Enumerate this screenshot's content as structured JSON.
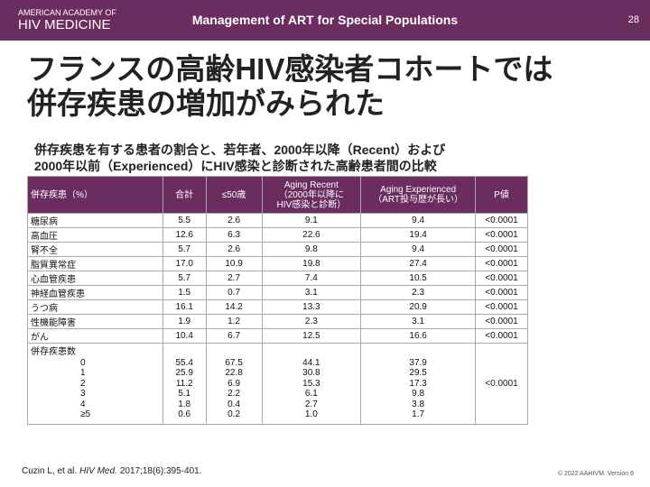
{
  "header": {
    "logo": [
      "AMERICAN ACADEMY OF",
      "HIV MEDICINE"
    ],
    "title": "Management of ART for Special Populations",
    "page": "28"
  },
  "title": [
    "フランスの高齢HIV感染者コホートでは",
    "併存疾患の増加がみられた"
  ],
  "subtitle": [
    "併存疾患を有する患者の割合と、若年者、2000年以降（Recent）および",
    "2000年以前（Experienced）にHIV感染と診断された高齢患者間の比較"
  ],
  "table": {
    "columns": [
      [
        "併存疾患（%）"
      ],
      [
        "合計"
      ],
      [
        "≤50歳"
      ],
      [
        "Aging Recent",
        "（2000年以降に",
        "HIV感染と診断）"
      ],
      [
        "Aging Experienced",
        "（ART投与歴が長い）"
      ],
      [
        "P値"
      ]
    ],
    "rows": [
      [
        "糖尿病",
        "5.5",
        "2.6",
        "9.1",
        "9.4",
        "<0.0001"
      ],
      [
        "高血圧",
        "12.6",
        "6.3",
        "22.6",
        "19.4",
        "<0.0001"
      ],
      [
        "腎不全",
        "5.7",
        "2.6",
        "9.8",
        "9.4",
        "<0.0001"
      ],
      [
        "脂質異常症",
        "17.0",
        "10.9",
        "19.8",
        "27.4",
        "<0.0001"
      ],
      [
        "心血管疾患",
        "5.7",
        "2.7",
        "7.4",
        "10.5",
        "<0.0001"
      ],
      [
        "神経血管疾患",
        "1.5",
        "0.7",
        "3.1",
        "2.3",
        "<0.0001"
      ],
      [
        "うつ病",
        "16.1",
        "14.2",
        "13.3",
        "20.9",
        "<0.0001"
      ],
      [
        "性機能障害",
        "1.9",
        "1.2",
        "2.3",
        "3.1",
        "<0.0001"
      ],
      [
        "がん",
        "10.4",
        "6.7",
        "12.5",
        "16.6",
        "<0.0001"
      ]
    ],
    "count_row": {
      "label": "併存疾患数",
      "levels": [
        "0",
        "1",
        "2",
        "3",
        "4",
        "≥5"
      ],
      "columns": [
        [
          "55.4",
          "25.9",
          "11.2",
          "5.1",
          "1.8",
          "0.6"
        ],
        [
          "67.5",
          "22.8",
          "6.9",
          "2.2",
          "0.4",
          "0.2"
        ],
        [
          "44.1",
          "30.8",
          "15.3",
          "6.1",
          "2.7",
          "1.0"
        ],
        [
          "37.9",
          "29.5",
          "17.3",
          "9.8",
          "3.8",
          "1.7"
        ]
      ],
      "p": "<0.0001"
    }
  },
  "citation": {
    "authors": "Cuzin L, et al.",
    "journal": "HIV Med.",
    "details": "2017;18(6):395-401."
  },
  "copyright": "© 2022 AAHIVM. Version 6"
}
